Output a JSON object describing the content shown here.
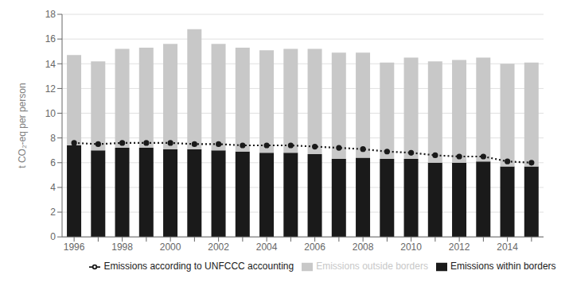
{
  "chart_data": {
    "type": "bar",
    "stacked": true,
    "grid": true,
    "legend": "bottom",
    "ylabel": "t CO₂-eq per person",
    "ylim": [
      0,
      18
    ],
    "yticks": [
      0,
      2,
      4,
      6,
      8,
      10,
      12,
      14,
      16,
      18
    ],
    "categories": [
      "1996",
      null,
      "1998",
      null,
      "2000",
      null,
      "2002",
      null,
      "2004",
      null,
      "2006",
      null,
      "2008",
      null,
      "2010",
      null,
      "2012",
      null,
      "2014",
      null
    ],
    "series": [
      {
        "name": "Emissions within borders",
        "type": "bar",
        "color": "#1a1a1a",
        "values": [
          7.4,
          7.0,
          7.2,
          7.2,
          7.1,
          7.1,
          7.0,
          6.9,
          6.8,
          6.8,
          6.7,
          6.3,
          6.4,
          6.3,
          6.3,
          6.0,
          6.0,
          6.1,
          5.7,
          5.7
        ]
      },
      {
        "name": "Emissions outside borders",
        "type": "bar",
        "color": "#c8c8c8",
        "values": [
          7.3,
          7.2,
          8.0,
          8.1,
          8.5,
          9.7,
          8.6,
          8.4,
          8.3,
          8.4,
          8.5,
          8.6,
          8.5,
          7.8,
          8.2,
          8.2,
          8.3,
          8.4,
          8.3,
          8.4
        ]
      },
      {
        "name": "Emissions according to UNFCCC accounting",
        "type": "line",
        "color": "#1a1a1a",
        "line_style": "dotted",
        "marker": "circle",
        "values": [
          7.6,
          7.5,
          7.6,
          7.6,
          7.6,
          7.5,
          7.5,
          7.4,
          7.4,
          7.4,
          7.3,
          7.2,
          7.1,
          6.9,
          6.8,
          6.6,
          6.5,
          6.5,
          6.1,
          6.0
        ]
      }
    ]
  }
}
